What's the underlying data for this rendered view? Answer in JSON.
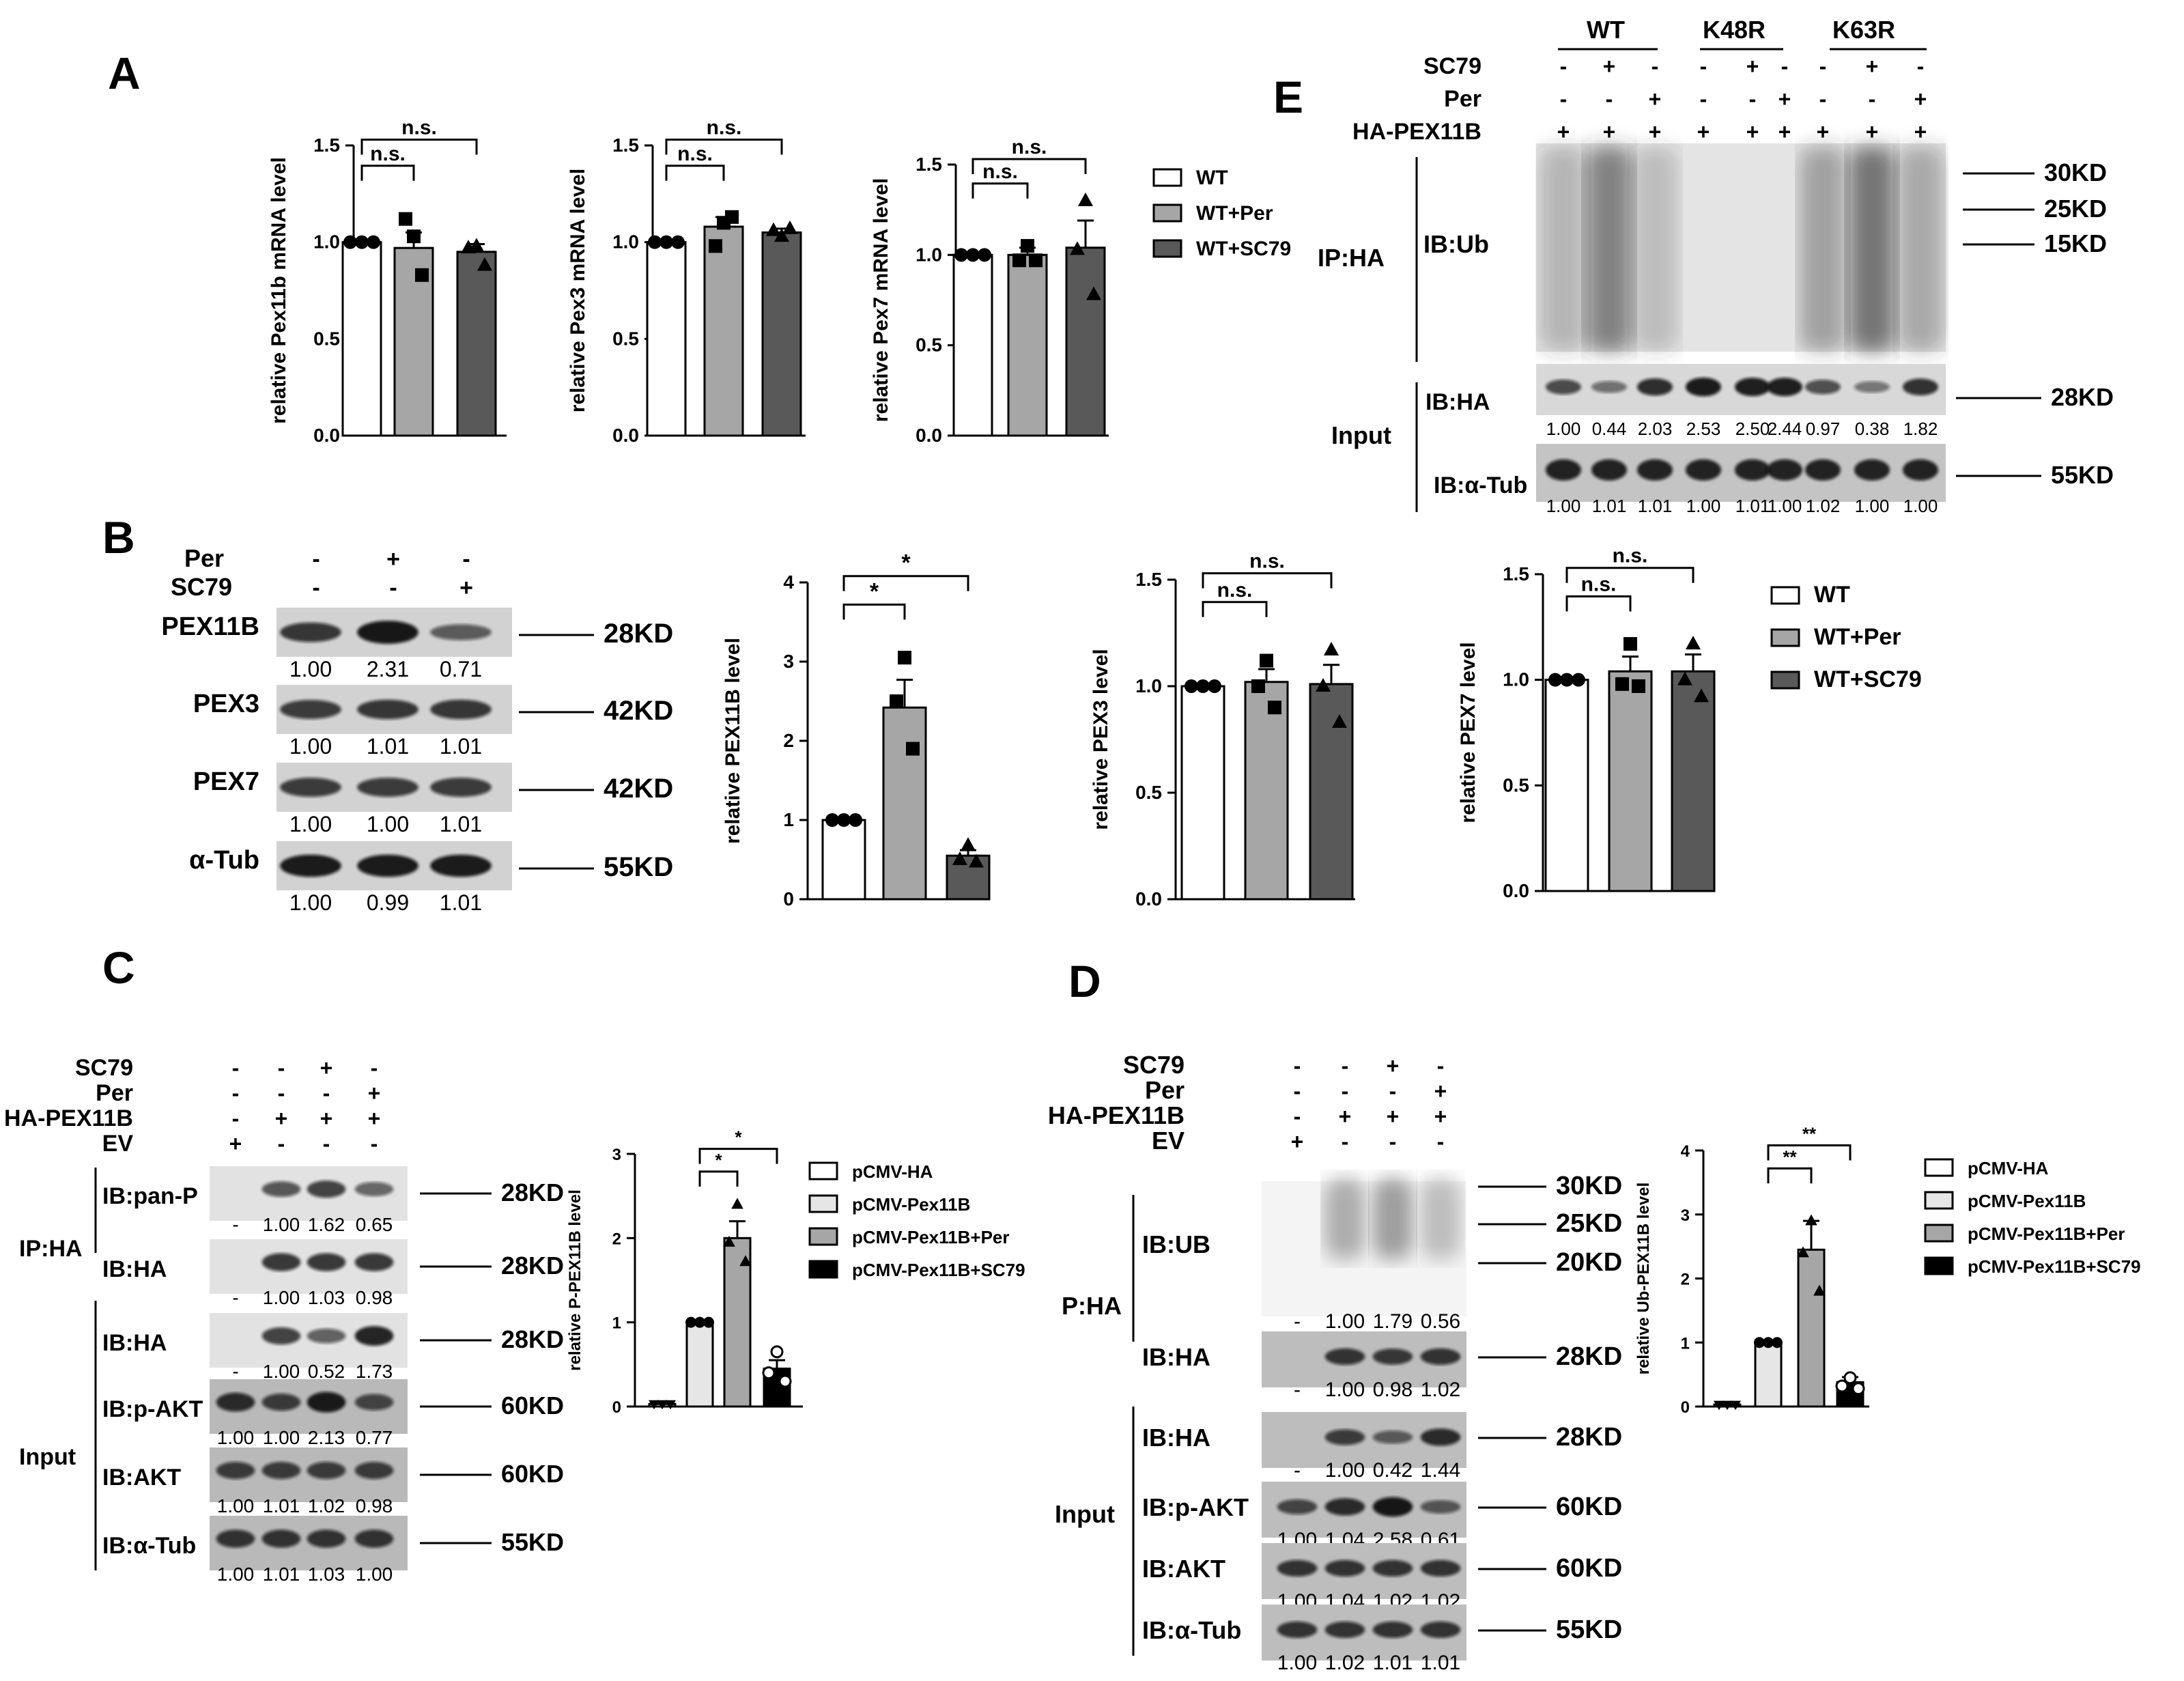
{
  "panels": [
    "A",
    "B",
    "C",
    "D",
    "E"
  ],
  "colors": {
    "wt": "#ffffff",
    "per": "#a6a6a6",
    "sc79": "#595959",
    "pcmv": "#ffffff",
    "pex11b": "#e6e6e6",
    "pex11b_per": "#a6a6a6",
    "pex11b_sc79": "#000000"
  },
  "sig": {
    "ns": "n.s.",
    "star": "*",
    "dstar": "**"
  },
  "units": {
    "kd28": "28KD",
    "kd42": "42KD",
    "kd55": "55KD",
    "kd60": "60KD",
    "kd30": "30KD",
    "kd25": "25KD",
    "kd20": "20KD",
    "kd15": "15KD"
  },
  "legend_A": [
    "WT",
    "WT+Per",
    "WT+SC79"
  ],
  "legend_C": [
    "pCMV-HA",
    "pCMV-Pex11B",
    "pCMV-Pex11B+Per",
    "pCMV-Pex11B+SC79"
  ],
  "treat": {
    "per": "Per",
    "sc79": "SC79",
    "hapex": "HA-PEX11B",
    "ev": "EV",
    "plus": "+",
    "minus": "-",
    "wt": "WT",
    "k48r": "K48R",
    "k63r": "K63R"
  },
  "blot_B": {
    "rows": [
      {
        "name": "PEX11B",
        "kd": "28KD",
        "vals": [
          "1.00",
          "2.31",
          "0.71"
        ]
      },
      {
        "name": "PEX3",
        "kd": "42KD",
        "vals": [
          "1.00",
          "1.01",
          "1.01"
        ]
      },
      {
        "name": "PEX7",
        "kd": "42KD",
        "vals": [
          "1.00",
          "1.00",
          "1.01"
        ]
      },
      {
        "name": "α-Tub",
        "kd": "55KD",
        "vals": [
          "1.00",
          "0.99",
          "1.01"
        ]
      }
    ]
  },
  "blot_C": {
    "ip": "IP:HA",
    "input": "Input",
    "rows": [
      {
        "name": "IB:pan-P",
        "kd": "28KD",
        "vals": [
          "-",
          "1.00",
          "1.62",
          "0.65"
        ]
      },
      {
        "name": "IB:HA",
        "kd": "28KD",
        "vals": [
          "-",
          "1.00",
          "1.03",
          "0.98"
        ]
      },
      {
        "name": "IB:HA",
        "kd": "28KD",
        "vals": [
          "-",
          "1.00",
          "0.52",
          "1.73"
        ]
      },
      {
        "name": "IB:p-AKT",
        "kd": "60KD",
        "vals": [
          "1.00",
          "1.00",
          "2.13",
          "0.77"
        ]
      },
      {
        "name": "IB:AKT",
        "kd": "60KD",
        "vals": [
          "1.00",
          "1.01",
          "1.02",
          "0.98"
        ]
      },
      {
        "name": "IB:α-Tub",
        "kd": "55KD",
        "vals": [
          "1.00",
          "1.01",
          "1.03",
          "1.00"
        ]
      }
    ]
  },
  "blot_D": {
    "ip": "P:HA",
    "input": "Input",
    "rows": [
      {
        "name": "IB:UB",
        "vals": [
          "-",
          "1.00",
          "1.79",
          "0.56"
        ]
      },
      {
        "name": "IB:HA",
        "kd": "28KD",
        "vals": [
          "-",
          "1.00",
          "0.98",
          "1.02"
        ]
      },
      {
        "name": "IB:HA",
        "kd": "28KD",
        "vals": [
          "-",
          "1.00",
          "0.42",
          "1.44"
        ]
      },
      {
        "name": "IB:p-AKT",
        "kd": "60KD",
        "vals": [
          "1.00",
          "1.04",
          "2.58",
          "0.61"
        ]
      },
      {
        "name": "IB:AKT",
        "kd": "60KD",
        "vals": [
          "1.00",
          "1.04",
          "1.02",
          "1.02"
        ]
      },
      {
        "name": "IB:α-Tub",
        "kd": "55KD",
        "vals": [
          "1.00",
          "1.02",
          "1.01",
          "1.01"
        ]
      }
    ]
  },
  "blot_E": {
    "ip": "IP:HA",
    "ibub": "IB:Ub",
    "input": "Input",
    "ibha": "IB:HA",
    "ibtub": "IB:α-Tub",
    "ha_vals": [
      "1.00",
      "0.44",
      "2.03",
      "2.53",
      "2.50",
      "2.44",
      "0.97",
      "0.38",
      "1.82"
    ],
    "tub_vals": [
      "1.00",
      "1.01",
      "1.01",
      "1.00",
      "1.01",
      "1.00",
      "1.02",
      "1.00",
      "1.00"
    ]
  },
  "chart_data": [
    {
      "panel": "A",
      "type": "bar",
      "ylabel": "relative Pex11b mRNA level",
      "ylim": [
        0,
        1.5
      ],
      "yticks": [
        "0.0",
        "0.5",
        "1.0",
        "1.5"
      ],
      "categories": [
        "WT",
        "WT+Per",
        "WT+SC79"
      ],
      "values": [
        1.0,
        0.97,
        0.95
      ],
      "errors": [
        0,
        0.08,
        0.04
      ],
      "points": [
        [
          1,
          1,
          1
        ],
        [
          1.03,
          1.12,
          0.83
        ],
        [
          0.98,
          0.97,
          0.88
        ]
      ],
      "markers": [
        "circle",
        "square",
        "triangle"
      ],
      "sig": [
        {
          "from": 0,
          "to": 1,
          "text": "n.s."
        },
        {
          "from": 0,
          "to": 2,
          "text": "n.s."
        }
      ]
    },
    {
      "panel": "A",
      "type": "bar",
      "ylabel": "relative Pex3 mRNA level",
      "ylim": [
        0,
        1.5
      ],
      "yticks": [
        "0.0",
        "0.5",
        "1.0",
        "1.5"
      ],
      "categories": [
        "WT",
        "WT+Per",
        "WT+SC79"
      ],
      "values": [
        1.0,
        1.08,
        1.05
      ],
      "errors": [
        0,
        0.05,
        0.02
      ],
      "points": [
        [
          1,
          1,
          1
        ],
        [
          1.1,
          0.98,
          1.13
        ],
        [
          1.03,
          1.06,
          1.07
        ]
      ],
      "markers": [
        "circle",
        "square",
        "triangle"
      ],
      "sig": [
        {
          "from": 0,
          "to": 1,
          "text": "n.s."
        },
        {
          "from": 0,
          "to": 2,
          "text": "n.s."
        }
      ]
    },
    {
      "panel": "A",
      "type": "bar",
      "ylabel": "relative Pex7 mRNA level",
      "ylim": [
        0,
        1.5
      ],
      "yticks": [
        "0.0",
        "0.5",
        "1.0",
        "1.5"
      ],
      "categories": [
        "WT",
        "WT+Per",
        "WT+SC79"
      ],
      "values": [
        1.0,
        1.0,
        1.04
      ],
      "errors": [
        0,
        0.04,
        0.15
      ],
      "points": [
        [
          1,
          1,
          1
        ],
        [
          1.05,
          0.97,
          0.97
        ],
        [
          1.3,
          1.03,
          0.78
        ]
      ],
      "markers": [
        "circle",
        "square",
        "triangle"
      ],
      "sig": [
        {
          "from": 0,
          "to": 1,
          "text": "n.s."
        },
        {
          "from": 0,
          "to": 2,
          "text": "n.s."
        }
      ]
    },
    {
      "panel": "B",
      "type": "bar",
      "ylabel": "relative PEX11B level",
      "ylim": [
        0,
        4
      ],
      "yticks": [
        "0",
        "1",
        "2",
        "3",
        "4"
      ],
      "categories": [
        "WT",
        "WT+Per",
        "WT+SC79"
      ],
      "values": [
        1.0,
        2.42,
        0.55
      ],
      "errors": [
        0,
        0.35,
        0.07
      ],
      "points": [
        [
          1,
          1,
          1
        ],
        [
          3.05,
          2.5,
          1.9
        ],
        [
          0.68,
          0.5,
          0.47
        ]
      ],
      "markers": [
        "circle",
        "square",
        "triangle"
      ],
      "sig": [
        {
          "from": 0,
          "to": 1,
          "text": "*"
        },
        {
          "from": 0,
          "to": 2,
          "text": "*"
        }
      ]
    },
    {
      "panel": "B",
      "type": "bar",
      "ylabel": "relative PEX3 level",
      "ylim": [
        0,
        1.5
      ],
      "yticks": [
        "0.0",
        "0.5",
        "1.0",
        "1.5"
      ],
      "categories": [
        "WT",
        "WT+Per",
        "WT+SC79"
      ],
      "values": [
        1.0,
        1.02,
        1.01
      ],
      "errors": [
        0,
        0.06,
        0.09
      ],
      "points": [
        [
          1,
          1,
          1
        ],
        [
          1.12,
          1.0,
          0.9
        ],
        [
          1.17,
          1.0,
          0.83
        ]
      ],
      "markers": [
        "circle",
        "square",
        "triangle"
      ],
      "sig": [
        {
          "from": 0,
          "to": 1,
          "text": "n.s."
        },
        {
          "from": 0,
          "to": 2,
          "text": "n.s."
        }
      ]
    },
    {
      "panel": "B",
      "type": "bar",
      "ylabel": "relative PEX7 level",
      "ylim": [
        0,
        1.5
      ],
      "yticks": [
        "0.0",
        "0.5",
        "1.0",
        "1.5"
      ],
      "categories": [
        "WT",
        "WT+Per",
        "WT+SC79"
      ],
      "values": [
        1.0,
        1.04,
        1.04
      ],
      "errors": [
        0,
        0.07,
        0.08
      ],
      "points": [
        [
          1,
          1,
          1
        ],
        [
          1.17,
          0.98,
          0.97
        ],
        [
          1.17,
          1.0,
          0.92
        ]
      ],
      "markers": [
        "circle",
        "square",
        "triangle"
      ],
      "sig": [
        {
          "from": 0,
          "to": 1,
          "text": "n.s."
        },
        {
          "from": 0,
          "to": 2,
          "text": "n.s."
        }
      ]
    },
    {
      "panel": "C",
      "type": "bar",
      "ylabel": "relative P-PEX11B level",
      "ylim": [
        0,
        3
      ],
      "yticks": [
        "0",
        "1",
        "2",
        "3"
      ],
      "categories": [
        "pCMV-HA",
        "pCMV-Pex11B",
        "pCMV-Pex11B+Per",
        "pCMV-Pex11B+SC79"
      ],
      "values": [
        0.03,
        1.0,
        2.0,
        0.45
      ],
      "errors": [
        0,
        0,
        0.2,
        0.1
      ],
      "points": [
        [
          0.03,
          0.03,
          0.03
        ],
        [
          1,
          1,
          1
        ],
        [
          2.4,
          1.95,
          1.72
        ],
        [
          0.65,
          0.4,
          0.3
        ]
      ],
      "markers": [
        "triangle-down",
        "circle",
        "triangle",
        "circle-open"
      ],
      "sig": [
        {
          "from": 1,
          "to": 2,
          "text": "*"
        },
        {
          "from": 1,
          "to": 3,
          "text": "*"
        }
      ]
    },
    {
      "panel": "D",
      "type": "bar",
      "ylabel": "relative Ub-PEX11B level",
      "ylim": [
        0,
        4
      ],
      "yticks": [
        "0",
        "1",
        "2",
        "3",
        "4"
      ],
      "categories": [
        "pCMV-HA",
        "pCMV-Pex11B",
        "pCMV-Pex11B+Per",
        "pCMV-Pex11B+SC79"
      ],
      "values": [
        0.03,
        1.0,
        2.45,
        0.38
      ],
      "errors": [
        0,
        0,
        0.45,
        0.08
      ],
      "points": [
        [
          0.03,
          0.03,
          0.03
        ],
        [
          1,
          1,
          1
        ],
        [
          2.9,
          2.4,
          1.8
        ],
        [
          0.45,
          0.32,
          0.28
        ]
      ],
      "markers": [
        "triangle-down",
        "circle",
        "triangle",
        "circle-open"
      ],
      "sig": [
        {
          "from": 1,
          "to": 2,
          "text": "**"
        },
        {
          "from": 1,
          "to": 3,
          "text": "**"
        }
      ]
    }
  ]
}
